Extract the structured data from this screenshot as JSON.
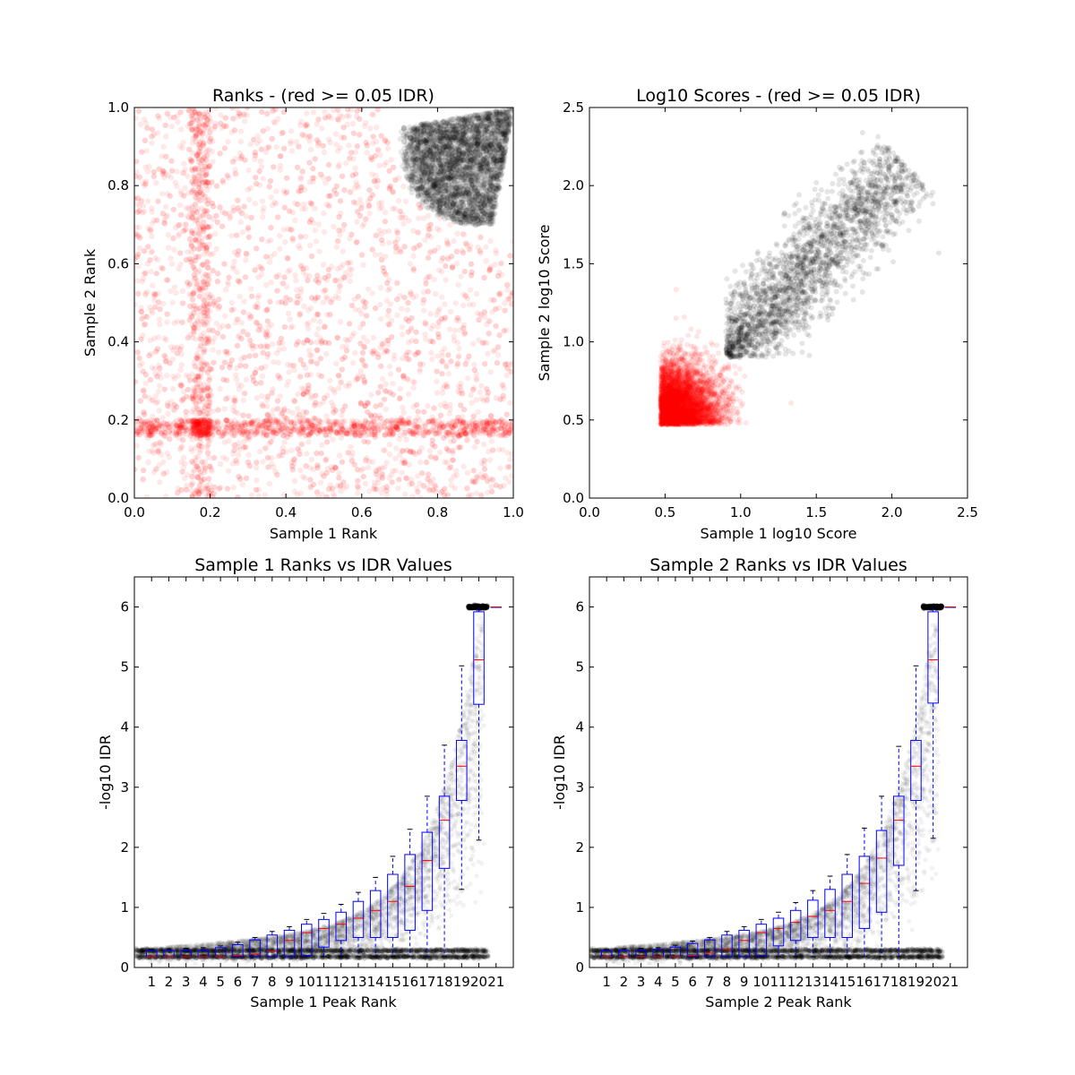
{
  "chart_data": [
    {
      "type": "scatter",
      "title": "Ranks - (red >= 0.05 IDR)",
      "xlabel": "Sample 1 Rank",
      "ylabel": "Sample 2 Rank",
      "xlim": [
        0.0,
        1.0
      ],
      "ylim": [
        0.0,
        1.0
      ],
      "xticks": [
        "0.0",
        "0.2",
        "0.4",
        "0.6",
        "0.8",
        "1.0"
      ],
      "yticks": [
        "0.0",
        "0.2",
        "0.4",
        "0.6",
        "0.8",
        "1.0"
      ],
      "colors": {
        "low_idr": "#000000",
        "high_idr": "#ff0000"
      },
      "high_confidence_region": {
        "x_min": 0.65,
        "y_min": 0.65,
        "corner": [
          1.0,
          1.0
        ]
      },
      "grid": false
    },
    {
      "type": "scatter",
      "title": "Log10 Scores - (red >= 0.05 IDR)",
      "xlabel": "Sample 1 log10 Score",
      "ylabel": "Sample 2 log10 Score",
      "xlim": [
        0.0,
        2.5
      ],
      "ylim": [
        0.0,
        2.5
      ],
      "xticks": [
        "0.0",
        "0.5",
        "1.0",
        "1.5",
        "2.0",
        "2.5"
      ],
      "yticks": [
        "0.0",
        "0.5",
        "1.0",
        "1.5",
        "2.0",
        "2.5"
      ],
      "colors": {
        "low_idr": "#000000",
        "high_idr": "#ff0000"
      },
      "score_min": 0.47,
      "threshold": 0.9,
      "max_score": 2.1,
      "grid": false
    },
    {
      "type": "box",
      "title": "Sample 1 Ranks vs IDR Values",
      "xlabel": "Sample 1 Peak Rank",
      "ylabel": "-log10 IDR",
      "ylim": [
        0,
        6.5
      ],
      "yticks": [
        "0",
        "1",
        "2",
        "3",
        "4",
        "5",
        "6"
      ],
      "categories": [
        "1",
        "2",
        "3",
        "4",
        "5",
        "6",
        "7",
        "8",
        "9",
        "10",
        "11",
        "12",
        "13",
        "14",
        "15",
        "16",
        "17",
        "18",
        "19",
        "20",
        "21"
      ],
      "boxes": [
        {
          "low": 0.18,
          "q1": 0.18,
          "median": 0.18,
          "q3": 0.28,
          "high": 0.3
        },
        {
          "low": 0.18,
          "q1": 0.18,
          "median": 0.18,
          "q3": 0.28,
          "high": 0.31
        },
        {
          "low": 0.18,
          "q1": 0.18,
          "median": 0.18,
          "q3": 0.28,
          "high": 0.32
        },
        {
          "low": 0.18,
          "q1": 0.18,
          "median": 0.18,
          "q3": 0.28,
          "high": 0.33
        },
        {
          "low": 0.18,
          "q1": 0.18,
          "median": 0.18,
          "q3": 0.33,
          "high": 0.36
        },
        {
          "low": 0.18,
          "q1": 0.18,
          "median": 0.2,
          "q3": 0.38,
          "high": 0.42
        },
        {
          "low": 0.18,
          "q1": 0.18,
          "median": 0.22,
          "q3": 0.46,
          "high": 0.5
        },
        {
          "low": 0.18,
          "q1": 0.18,
          "median": 0.27,
          "q3": 0.54,
          "high": 0.6
        },
        {
          "low": 0.18,
          "q1": 0.18,
          "median": 0.45,
          "q3": 0.62,
          "high": 0.68
        },
        {
          "low": 0.18,
          "q1": 0.2,
          "median": 0.58,
          "q3": 0.72,
          "high": 0.8
        },
        {
          "low": 0.18,
          "q1": 0.34,
          "median": 0.65,
          "q3": 0.8,
          "high": 0.9
        },
        {
          "low": 0.18,
          "q1": 0.45,
          "median": 0.72,
          "q3": 0.92,
          "high": 1.05
        },
        {
          "low": 0.18,
          "q1": 0.5,
          "median": 0.82,
          "q3": 1.1,
          "high": 1.25
        },
        {
          "low": 0.18,
          "q1": 0.5,
          "median": 0.95,
          "q3": 1.28,
          "high": 1.5
        },
        {
          "low": 0.18,
          "q1": 0.5,
          "median": 1.1,
          "q3": 1.55,
          "high": 1.85
        },
        {
          "low": 0.18,
          "q1": 0.62,
          "median": 1.35,
          "q3": 1.88,
          "high": 2.3
        },
        {
          "low": 0.18,
          "q1": 0.95,
          "median": 1.78,
          "q3": 2.25,
          "high": 2.85
        },
        {
          "low": 0.18,
          "q1": 1.65,
          "median": 2.45,
          "q3": 2.85,
          "high": 3.7
        },
        {
          "low": 1.3,
          "q1": 2.78,
          "median": 3.35,
          "q3": 3.78,
          "high": 5.02
        },
        {
          "low": 2.12,
          "q1": 4.38,
          "median": 5.12,
          "q3": 5.92,
          "high": 6.0
        },
        {
          "low": 6.0,
          "q1": 6.0,
          "median": 6.0,
          "q3": 6.0,
          "high": 6.0
        }
      ],
      "colors": {
        "points": "#000000",
        "box": "#0000ff",
        "median": "#ff0000"
      },
      "grid": false
    },
    {
      "type": "box",
      "title": "Sample 2 Ranks vs IDR Values",
      "xlabel": "Sample 2 Peak Rank",
      "ylabel": "-log10 IDR",
      "ylim": [
        0,
        6.5
      ],
      "yticks": [
        "0",
        "1",
        "2",
        "3",
        "4",
        "5",
        "6"
      ],
      "categories": [
        "1",
        "2",
        "3",
        "4",
        "5",
        "6",
        "7",
        "8",
        "9",
        "10",
        "11",
        "12",
        "13",
        "14",
        "15",
        "16",
        "17",
        "18",
        "19",
        "20",
        "21"
      ],
      "boxes": [
        {
          "low": 0.18,
          "q1": 0.18,
          "median": 0.18,
          "q3": 0.28,
          "high": 0.3
        },
        {
          "low": 0.18,
          "q1": 0.18,
          "median": 0.18,
          "q3": 0.28,
          "high": 0.31
        },
        {
          "low": 0.18,
          "q1": 0.18,
          "median": 0.18,
          "q3": 0.28,
          "high": 0.32
        },
        {
          "low": 0.18,
          "q1": 0.18,
          "median": 0.18,
          "q3": 0.3,
          "high": 0.33
        },
        {
          "low": 0.18,
          "q1": 0.18,
          "median": 0.18,
          "q3": 0.34,
          "high": 0.37
        },
        {
          "low": 0.18,
          "q1": 0.18,
          "median": 0.2,
          "q3": 0.4,
          "high": 0.44
        },
        {
          "low": 0.18,
          "q1": 0.18,
          "median": 0.24,
          "q3": 0.46,
          "high": 0.5
        },
        {
          "low": 0.18,
          "q1": 0.18,
          "median": 0.3,
          "q3": 0.54,
          "high": 0.6
        },
        {
          "low": 0.18,
          "q1": 0.18,
          "median": 0.45,
          "q3": 0.62,
          "high": 0.68
        },
        {
          "low": 0.18,
          "q1": 0.2,
          "median": 0.58,
          "q3": 0.72,
          "high": 0.8
        },
        {
          "low": 0.18,
          "q1": 0.36,
          "median": 0.65,
          "q3": 0.82,
          "high": 0.92
        },
        {
          "low": 0.18,
          "q1": 0.45,
          "median": 0.75,
          "q3": 0.95,
          "high": 1.08
        },
        {
          "low": 0.18,
          "q1": 0.5,
          "median": 0.85,
          "q3": 1.12,
          "high": 1.28
        },
        {
          "low": 0.18,
          "q1": 0.5,
          "median": 0.95,
          "q3": 1.3,
          "high": 1.52
        },
        {
          "low": 0.18,
          "q1": 0.5,
          "median": 1.1,
          "q3": 1.55,
          "high": 1.88
        },
        {
          "low": 0.18,
          "q1": 0.65,
          "median": 1.4,
          "q3": 1.85,
          "high": 2.32
        },
        {
          "low": 0.18,
          "q1": 0.92,
          "median": 1.82,
          "q3": 2.28,
          "high": 2.85
        },
        {
          "low": 0.18,
          "q1": 1.7,
          "median": 2.45,
          "q3": 2.85,
          "high": 3.68
        },
        {
          "low": 1.28,
          "q1": 2.78,
          "median": 3.35,
          "q3": 3.78,
          "high": 5.02
        },
        {
          "low": 2.15,
          "q1": 4.4,
          "median": 5.12,
          "q3": 5.92,
          "high": 6.0
        },
        {
          "low": 6.0,
          "q1": 6.0,
          "median": 6.0,
          "q3": 6.0,
          "high": 6.0
        }
      ],
      "colors": {
        "points": "#000000",
        "box": "#0000ff",
        "median": "#ff0000"
      },
      "grid": false
    }
  ]
}
